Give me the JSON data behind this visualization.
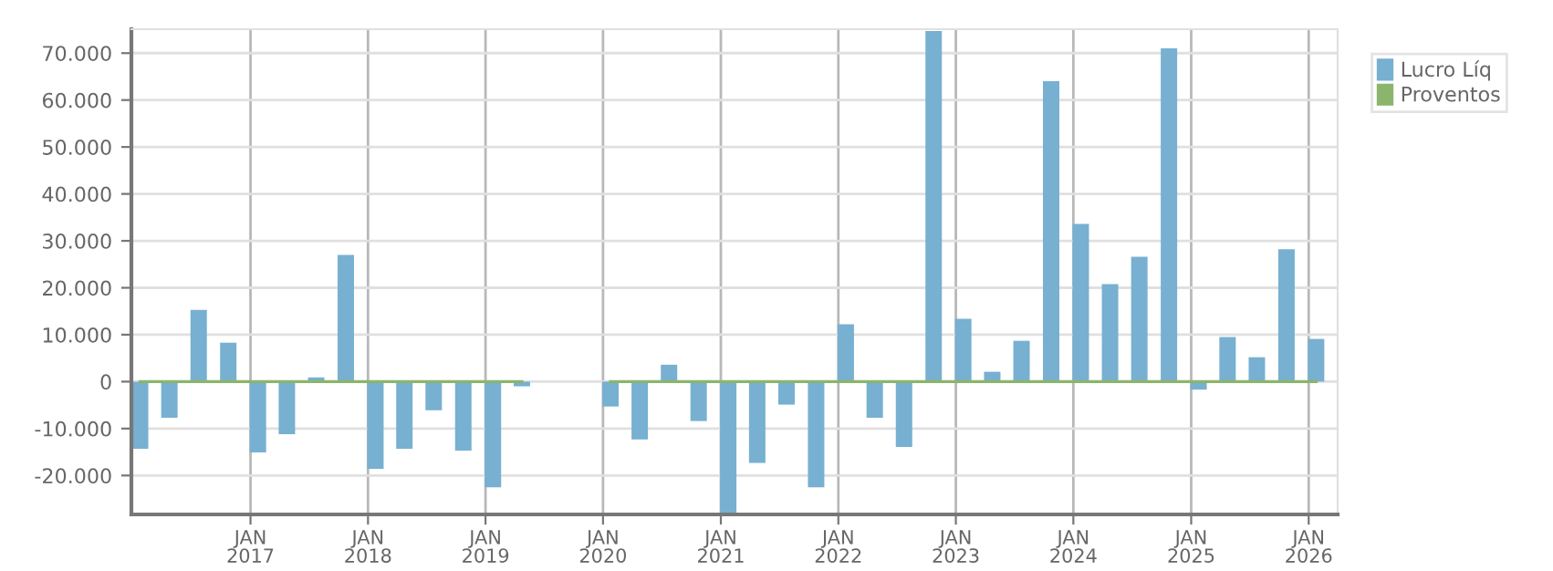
{
  "chart_data": {
    "type": "bar",
    "x": [
      "2016-01-24",
      "2016-04-24",
      "2016-07-24",
      "2016-10-24",
      "2017-01-24",
      "2017-04-24",
      "2017-07-24",
      "2017-10-24",
      "2018-01-24",
      "2018-04-24",
      "2018-07-24",
      "2018-10-24",
      "2019-01-24",
      "2019-04-24",
      "2019-07-24",
      "2019-10-24",
      "2020-01-24",
      "2020-04-24",
      "2020-07-24",
      "2020-10-24",
      "2021-01-24",
      "2021-04-24",
      "2021-07-24",
      "2021-10-24",
      "2022-01-24",
      "2022-04-24",
      "2022-07-24",
      "2022-10-24",
      "2023-01-24",
      "2023-04-24",
      "2023-07-24",
      "2023-10-24",
      "2024-01-24",
      "2024-04-24",
      "2024-07-24",
      "2024-10-24",
      "2025-01-24",
      "2025-04-24",
      "2025-07-24",
      "2025-10-24",
      "2026-01-24"
    ],
    "series": [
      {
        "name": "Lucro Líq",
        "color": "#77b0d1",
        "values": [
          -14300,
          -7700,
          15300,
          8300,
          -15100,
          -11200,
          900,
          27000,
          -18600,
          -14300,
          -6100,
          -14700,
          -22500,
          -1000,
          null,
          null,
          -5300,
          -12300,
          3600,
          -8400,
          -28000,
          -17300,
          -4900,
          -22500,
          12200,
          -7700,
          -13900,
          74700,
          13400,
          2100,
          8700,
          64000,
          33600,
          20800,
          26600,
          71000,
          -1700,
          9500,
          5200,
          28200,
          9100
        ]
      },
      {
        "name": "Proventos",
        "type": "line",
        "color": "#8bb56c",
        "values": [
          0,
          0,
          0,
          0,
          0,
          0,
          0,
          0,
          0,
          0,
          0,
          0,
          0,
          0,
          null,
          null,
          0,
          0,
          0,
          0,
          0,
          0,
          0,
          0,
          0,
          0,
          0,
          0,
          0,
          0,
          0,
          0,
          0,
          0,
          0,
          0,
          0,
          0,
          0,
          0,
          0
        ]
      }
    ],
    "xlim": [
      "2015-12-28",
      "2026-04-01"
    ],
    "xticks": [
      {
        "value": "2017-01-01",
        "label": "JAN\n2017"
      },
      {
        "value": "2018-01-01",
        "label": "JAN\n2018"
      },
      {
        "value": "2019-01-01",
        "label": "JAN\n2019"
      },
      {
        "value": "2020-01-01",
        "label": "JAN\n2020"
      },
      {
        "value": "2021-01-01",
        "label": "JAN\n2021"
      },
      {
        "value": "2022-01-01",
        "label": "JAN\n2022"
      },
      {
        "value": "2023-01-01",
        "label": "JAN\n2023"
      },
      {
        "value": "2024-01-01",
        "label": "JAN\n2024"
      },
      {
        "value": "2025-01-01",
        "label": "JAN\n2025"
      },
      {
        "value": "2026-01-01",
        "label": "JAN\n2026"
      }
    ],
    "ylim": [
      -28300,
      75100
    ],
    "yticks": [
      {
        "value": -20000,
        "label": "-20.000"
      },
      {
        "value": -10000,
        "label": "-10.000"
      },
      0,
      {
        "value": 10000,
        "label": "10.000"
      },
      {
        "value": 20000,
        "label": "20.000"
      },
      {
        "value": 30000,
        "label": "30.000"
      },
      {
        "value": 40000,
        "label": "40.000"
      },
      {
        "value": 50000,
        "label": "50.000"
      },
      {
        "value": 60000,
        "label": "60.000"
      },
      {
        "value": 70000,
        "label": "70.000"
      }
    ],
    "grid": true,
    "legend": "top right"
  }
}
